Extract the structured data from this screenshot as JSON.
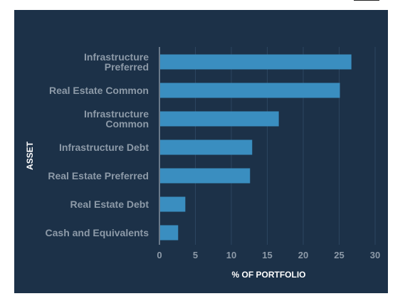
{
  "colors": {
    "panel": "#1c3148",
    "bar": "#3a8ec0",
    "grid": "#2c4560",
    "axis": "#b7c1cc",
    "label": "#8d9aa8",
    "title": "#ffffff"
  },
  "chart_data": {
    "type": "bar",
    "orientation": "horizontal",
    "categories": [
      [
        "Infrastructure",
        "Preferred"
      ],
      [
        "Real Estate Common"
      ],
      [
        "Infrastructure",
        "Common"
      ],
      [
        "Infrastructure Debt"
      ],
      [
        "Real Estate Preferred"
      ],
      [
        "Real Estate Debt"
      ],
      [
        "Cash and Equivalents"
      ]
    ],
    "values": [
      26.7,
      25.1,
      16.6,
      12.9,
      12.6,
      3.6,
      2.6
    ],
    "xlabel": "% OF PORTFOLIO",
    "ylabel": "ASSET",
    "xlim": [
      0,
      30
    ],
    "xticks": [
      0,
      5,
      10,
      15,
      20,
      25,
      30
    ],
    "grid": true
  }
}
